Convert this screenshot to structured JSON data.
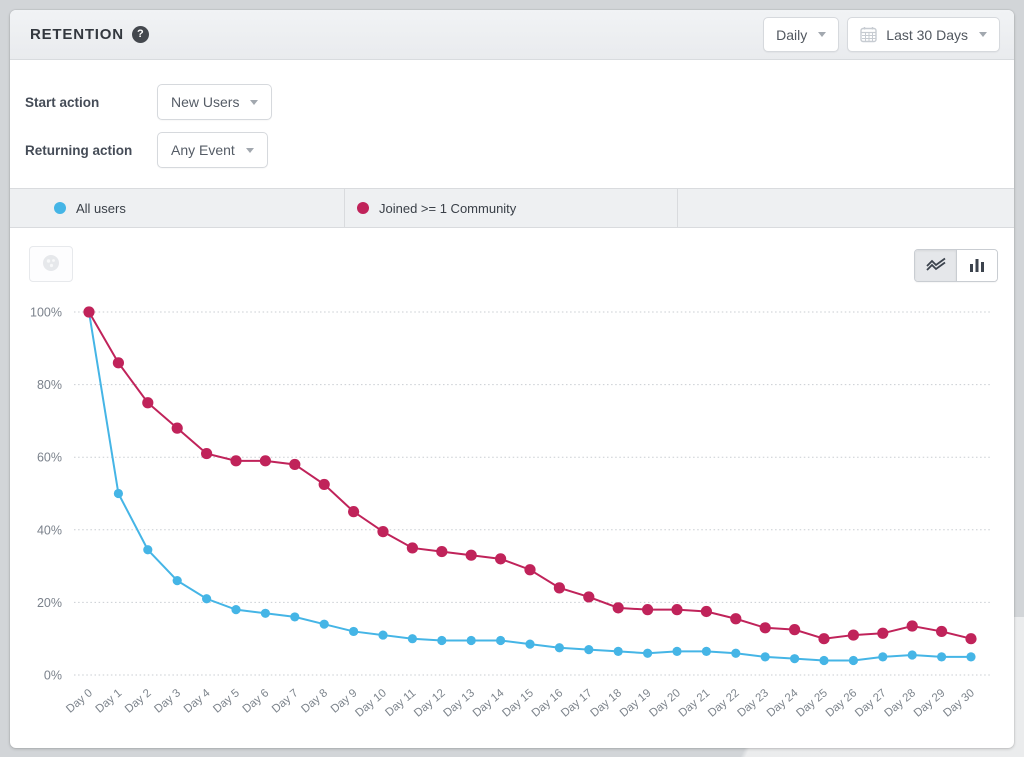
{
  "header": {
    "title": "RETENTION",
    "help_glyph": "?",
    "interval": {
      "value": "Daily"
    },
    "date_range": {
      "value": "Last 30 Days"
    }
  },
  "filters": {
    "start": {
      "label": "Start action",
      "value": "New Users"
    },
    "returning": {
      "label": "Returning action",
      "value": "Any Event"
    }
  },
  "legend": {
    "items": [
      {
        "label": "All users",
        "color": "#45b5e6"
      },
      {
        "label": "Joined >= 1 Community",
        "color": "#c0235a"
      }
    ]
  },
  "chart_data": {
    "type": "line",
    "x": [
      "Day 0",
      "Day 1",
      "Day 2",
      "Day 3",
      "Day 4",
      "Day 5",
      "Day 6",
      "Day 7",
      "Day 8",
      "Day 9",
      "Day 10",
      "Day 11",
      "Day 12",
      "Day 13",
      "Day 14",
      "Day 15",
      "Day 16",
      "Day 17",
      "Day 18",
      "Day 19",
      "Day 20",
      "Day 21",
      "Day 22",
      "Day 23",
      "Day 24",
      "Day 25",
      "Day 26",
      "Day 27",
      "Day 28",
      "Day 29",
      "Day 30"
    ],
    "yticks": [
      0,
      20,
      40,
      60,
      80,
      100
    ],
    "ytick_suffix": "%",
    "ylim": [
      0,
      100
    ],
    "grid": "horizontal-dotted",
    "legend_position": "top-bar",
    "series": [
      {
        "name": "All users",
        "color": "#45b5e6",
        "values": [
          100,
          50,
          34.5,
          26,
          21,
          18,
          17,
          16,
          14,
          12,
          11,
          10,
          9.5,
          9.5,
          9.5,
          8.5,
          7.5,
          7,
          6.5,
          6,
          6.5,
          6.5,
          6,
          5,
          4.5,
          4,
          4,
          5,
          5.5,
          5,
          5
        ]
      },
      {
        "name": "Joined >= 1 Community",
        "color": "#c0235a",
        "values": [
          100,
          86,
          75,
          68,
          61,
          59,
          59,
          58,
          52.5,
          45,
          39.5,
          35,
          34,
          33,
          32,
          29,
          24,
          21.5,
          18.5,
          18,
          18,
          17.5,
          15.5,
          13,
          12.5,
          10,
          11,
          11.5,
          13.5,
          12,
          10
        ]
      }
    ]
  }
}
